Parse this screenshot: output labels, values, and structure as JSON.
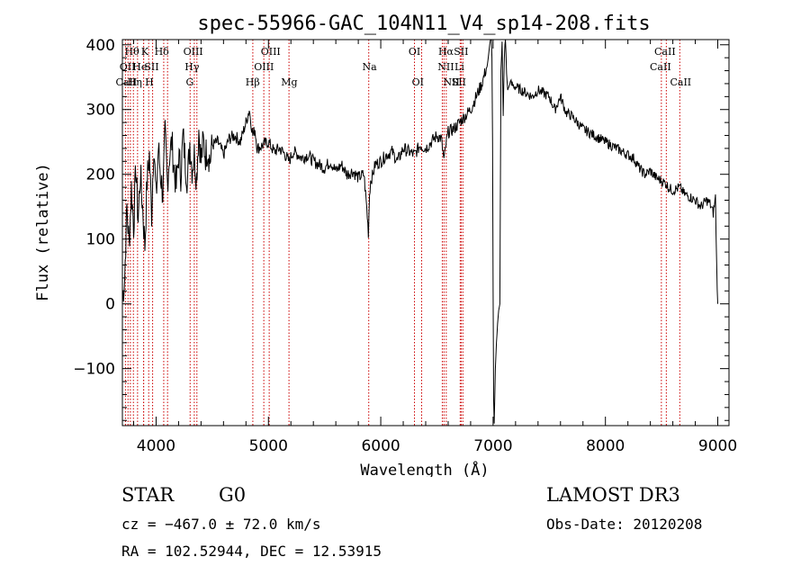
{
  "chart_data": {
    "type": "line",
    "title": "spec-55966-GAC_104N11_V4_sp14-208.fits",
    "xlabel": "Wavelength (Å)",
    "ylabel": "Flux (relative)",
    "xlim": [
      3700,
      9100
    ],
    "ylim": [
      -188,
      408
    ],
    "xticks": [
      4000,
      5000,
      6000,
      7000,
      8000,
      9000
    ],
    "yticks": [
      -100,
      0,
      100,
      200,
      300,
      400
    ],
    "xtick_labels": [
      "4000",
      "5000",
      "6000",
      "7000",
      "8000",
      "9000"
    ],
    "ytick_labels": [
      "−100",
      "0",
      "100",
      "200",
      "300",
      "400"
    ],
    "series": [
      {
        "name": "flux",
        "x": [
          3700,
          3720,
          3740,
          3760,
          3780,
          3800,
          3820,
          3840,
          3860,
          3880,
          3900,
          3920,
          3940,
          3960,
          3980,
          4000,
          4020,
          4040,
          4060,
          4080,
          4100,
          4120,
          4140,
          4160,
          4180,
          4200,
          4220,
          4240,
          4260,
          4280,
          4300,
          4320,
          4340,
          4360,
          4380,
          4400,
          4420,
          4440,
          4460,
          4480,
          4500,
          4550,
          4600,
          4650,
          4700,
          4750,
          4800,
          4830,
          4861,
          4880,
          4900,
          4950,
          5000,
          5050,
          5100,
          5150,
          5183,
          5220,
          5270,
          5300,
          5350,
          5400,
          5450,
          5500,
          5550,
          5600,
          5650,
          5700,
          5750,
          5800,
          5850,
          5870,
          5890,
          5900,
          5910,
          5930,
          5950,
          6000,
          6050,
          6100,
          6150,
          6200,
          6250,
          6300,
          6350,
          6400,
          6450,
          6500,
          6540,
          6563,
          6580,
          6600,
          6650,
          6700,
          6750,
          6800,
          6850,
          6900,
          6950,
          6970,
          6985,
          6990,
          6995,
          7000,
          7005,
          7010,
          7020,
          7030,
          7040,
          7050,
          7060,
          7070,
          7080,
          7090,
          7100,
          7110,
          7120,
          7130,
          7150,
          7200,
          7250,
          7300,
          7350,
          7400,
          7450,
          7500,
          7550,
          7600,
          7650,
          7700,
          7750,
          7800,
          7850,
          7900,
          7950,
          8000,
          8050,
          8100,
          8150,
          8200,
          8250,
          8300,
          8350,
          8400,
          8450,
          8500,
          8542,
          8560,
          8600,
          8662,
          8700,
          8750,
          8800,
          8850,
          8900,
          8930,
          8960,
          8980,
          8990,
          9000
        ],
        "values": [
          10,
          40,
          150,
          90,
          180,
          120,
          210,
          130,
          200,
          150,
          90,
          190,
          230,
          140,
          250,
          160,
          240,
          200,
          170,
          260,
          190,
          230,
          250,
          210,
          180,
          230,
          200,
          260,
          220,
          190,
          250,
          210,
          230,
          195,
          270,
          220,
          250,
          230,
          240,
          220,
          245,
          250,
          230,
          255,
          260,
          250,
          280,
          300,
          260,
          270,
          240,
          245,
          250,
          235,
          240,
          230,
          220,
          235,
          230,
          225,
          230,
          220,
          215,
          210,
          220,
          205,
          215,
          200,
          205,
          195,
          200,
          160,
          110,
          170,
          190,
          200,
          215,
          220,
          230,
          235,
          220,
          240,
          235,
          230,
          245,
          240,
          250,
          260,
          255,
          220,
          245,
          265,
          270,
          280,
          290,
          300,
          320,
          340,
          370,
          400,
          420,
          380,
          250,
          20,
          -150,
          -185,
          -100,
          -60,
          -30,
          -10,
          0,
          360,
          405,
          290,
          380,
          420,
          355,
          330,
          340,
          335,
          330,
          325,
          320,
          330,
          325,
          320,
          300,
          320,
          295,
          290,
          280,
          270,
          265,
          260,
          255,
          250,
          245,
          240,
          235,
          230,
          225,
          210,
          200,
          205,
          195,
          190,
          185,
          180,
          175,
          180,
          170,
          165,
          160,
          150,
          160,
          155,
          140,
          165,
          60,
          0
        ]
      }
    ],
    "lines": [
      {
        "labels": [
          "Hθ",
          "OII",
          "CaII"
        ],
        "x": [
          3727,
          3750,
          3771,
          3798
        ]
      },
      {
        "labels": [
          "Hη",
          "K"
        ],
        "x": [
          3835,
          3889,
          3934
        ]
      },
      {
        "labels": [
          "He",
          "H",
          "SII"
        ],
        "x": [
          3889,
          3969,
          4068
        ]
      },
      {
        "labels": [
          "Hδ"
        ],
        "x": [
          4102
        ]
      },
      {
        "labels": [
          "OIII",
          "Hγ",
          "G"
        ],
        "x": [
          4303,
          4340,
          4363
        ]
      },
      {
        "labels": [
          "Hβ",
          "OIII",
          "OIII",
          "Mg"
        ],
        "x": [
          4861,
          4959,
          5007,
          5183
        ]
      },
      {
        "labels": [
          "Na"
        ],
        "x": [
          5893
        ]
      },
      {
        "labels": [
          "OI",
          "OI"
        ],
        "x": [
          6300,
          6364
        ]
      },
      {
        "labels": [
          "Hα",
          "NII",
          "NII",
          "SII",
          "Li",
          "SII"
        ],
        "x": [
          6548,
          6563,
          6583,
          6707,
          6716,
          6731
        ]
      },
      {
        "labels": [
          "CaII",
          "CaII",
          "CaII"
        ],
        "x": [
          8498,
          8542,
          8662
        ]
      }
    ],
    "line_labels": [
      {
        "text": "Hθ",
        "x": 3785,
        "row": 1
      },
      {
        "text": "K",
        "x": 3900,
        "row": 1
      },
      {
        "text": "Hδ",
        "x": 4050,
        "row": 1
      },
      {
        "text": "OIII",
        "x": 4330,
        "row": 1
      },
      {
        "text": "OIII",
        "x": 5020,
        "row": 1
      },
      {
        "text": "OI",
        "x": 6300,
        "row": 1
      },
      {
        "text": "Hα",
        "x": 6580,
        "row": 1
      },
      {
        "text": "SII",
        "x": 6715,
        "row": 1
      },
      {
        "text": "CaII",
        "x": 8530,
        "row": 1
      },
      {
        "text": "OII",
        "x": 3745,
        "row": 2
      },
      {
        "text": "He",
        "x": 3855,
        "row": 2
      },
      {
        "text": "SII",
        "x": 3960,
        "row": 2
      },
      {
        "text": "Hγ",
        "x": 4320,
        "row": 2
      },
      {
        "text": "OIII",
        "x": 4960,
        "row": 2
      },
      {
        "text": "Na",
        "x": 5900,
        "row": 2
      },
      {
        "text": "NII",
        "x": 6580,
        "row": 2
      },
      {
        "text": "Li",
        "x": 6700,
        "row": 2
      },
      {
        "text": "CaII",
        "x": 8490,
        "row": 2
      },
      {
        "text": "CaII",
        "x": 3735,
        "row": 3
      },
      {
        "text": "Hη",
        "x": 3810,
        "row": 3
      },
      {
        "text": "H",
        "x": 3940,
        "row": 3
      },
      {
        "text": "G",
        "x": 4300,
        "row": 3
      },
      {
        "text": "Hβ",
        "x": 4860,
        "row": 3
      },
      {
        "text": "Mg",
        "x": 5185,
        "row": 3
      },
      {
        "text": "OI",
        "x": 6330,
        "row": 3
      },
      {
        "text": "NII",
        "x": 6630,
        "row": 3
      },
      {
        "text": "SII",
        "x": 6695,
        "row": 3
      },
      {
        "text": "CaII",
        "x": 8670,
        "row": 3
      }
    ],
    "line_color": "#cc0000"
  },
  "info": {
    "object_class": "STAR",
    "subclass": "G0",
    "survey": "LAMOST DR3",
    "redshift": "cz = −467.0 ± 72.0 km/s",
    "obs_date": "Obs-Date: 20120208",
    "coords": "RA = 102.52944, DEC =  12.53915"
  }
}
